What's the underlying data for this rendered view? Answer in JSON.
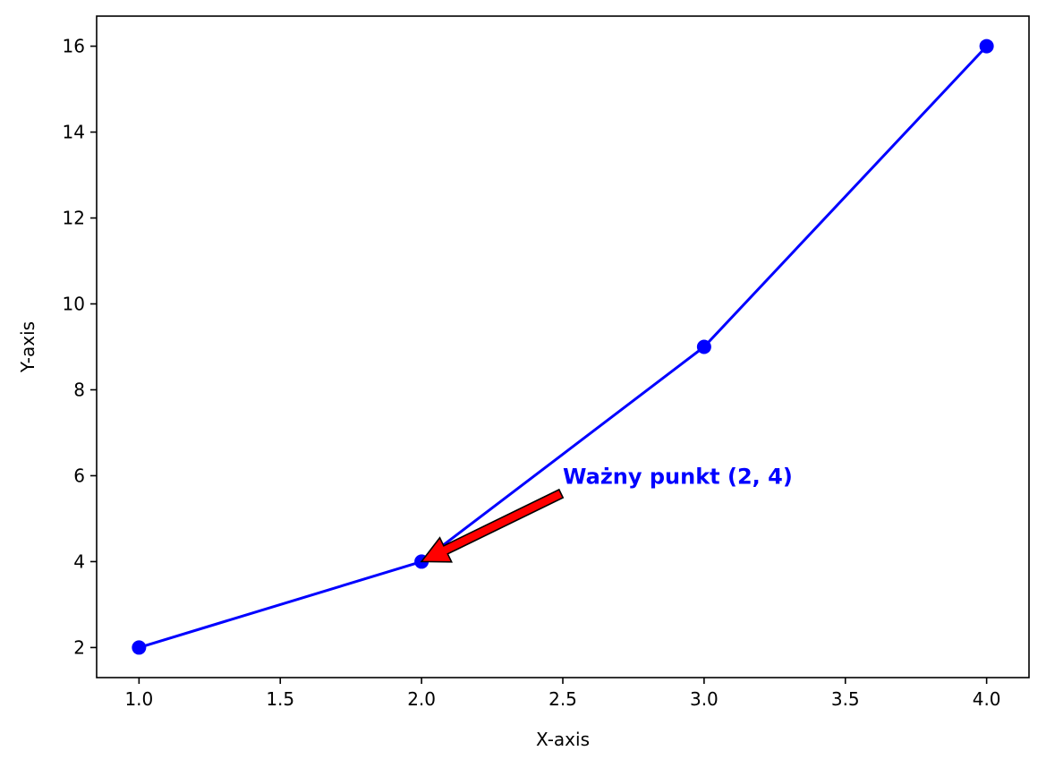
{
  "chart_data": {
    "type": "line",
    "title": "",
    "xlabel": "X-axis",
    "ylabel": "Y-axis",
    "x": [
      1,
      2,
      3,
      4
    ],
    "series": [
      {
        "values": [
          2,
          4,
          9,
          16
        ],
        "color": "#0000ff",
        "marker": "circle"
      }
    ],
    "xlim": [
      0.85,
      4.15
    ],
    "ylim": [
      1.3,
      16.7
    ],
    "xticks": [
      1.0,
      1.5,
      2.0,
      2.5,
      3.0,
      3.5,
      4.0
    ],
    "xtick_labels": [
      "1.0",
      "1.5",
      "2.0",
      "2.5",
      "3.0",
      "3.5",
      "4.0"
    ],
    "yticks": [
      2,
      4,
      6,
      8,
      10,
      12,
      14,
      16
    ],
    "ytick_labels": [
      "2",
      "4",
      "6",
      "8",
      "10",
      "12",
      "14",
      "16"
    ],
    "grid": false,
    "annotation": {
      "text": "Ważny punkt (2, 4)",
      "text_color": "#0000ff",
      "xy": [
        2,
        4
      ],
      "xytext": [
        2.5,
        6
      ],
      "arrow_color": "#ff0000",
      "arrow_edge_color": "#000000"
    }
  }
}
